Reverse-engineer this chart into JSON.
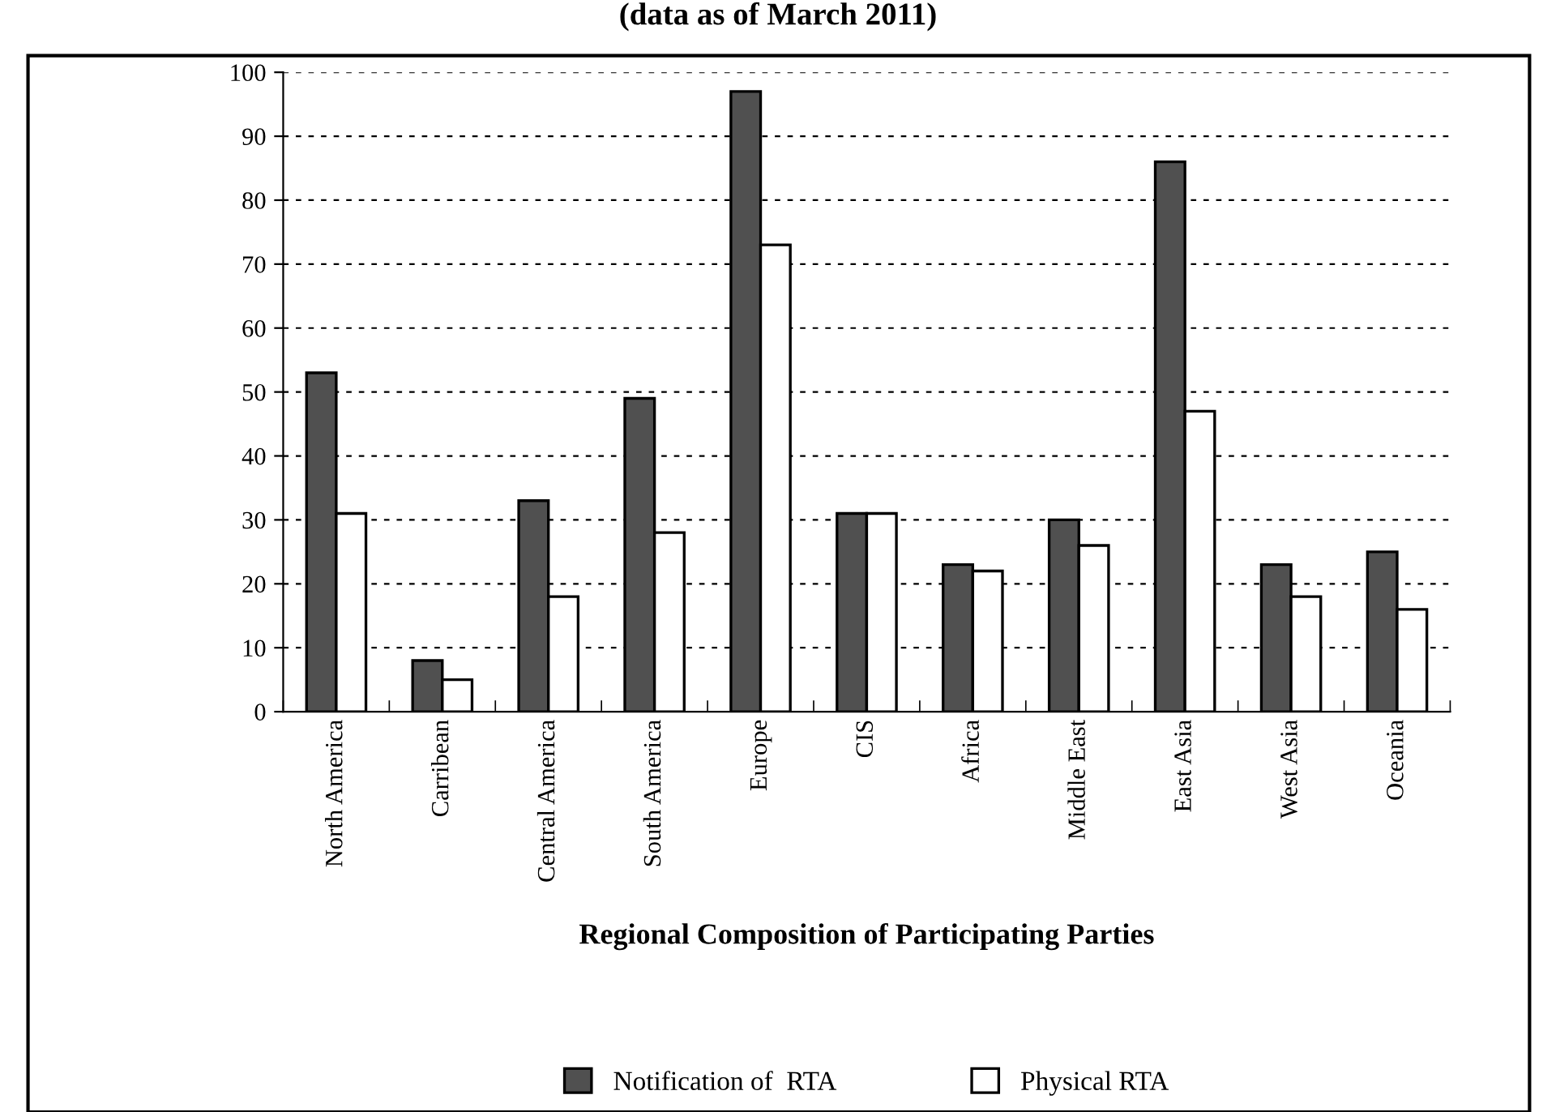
{
  "chart_data": {
    "type": "bar",
    "title": "(data as of March 2011)",
    "xlabel": "Regional Composition of Participating Parties",
    "categories": [
      "North America",
      "Carribean",
      "Central America",
      "South America",
      "Europe",
      "CIS",
      "Africa",
      "Middle East",
      "East Asia",
      "West Asia",
      "Oceania"
    ],
    "series": [
      {
        "name": "Notification of  RTA",
        "color": "#505050",
        "values": [
          53,
          8,
          33,
          49,
          97,
          31,
          23,
          30,
          86,
          23,
          25
        ]
      },
      {
        "name": "Physical RTA",
        "color": "#ffffff",
        "values": [
          31,
          5,
          18,
          28,
          73,
          31,
          22,
          26,
          47,
          18,
          16
        ]
      }
    ],
    "ylim": [
      0,
      100
    ],
    "yticks": [
      0,
      10,
      20,
      30,
      40,
      50,
      60,
      70,
      80,
      90,
      100
    ],
    "grid": "y",
    "legend": "bottom"
  }
}
